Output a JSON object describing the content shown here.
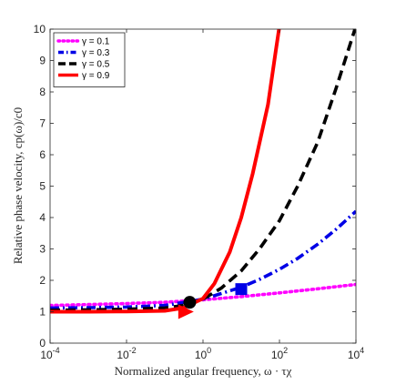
{
  "chart_data": {
    "type": "line",
    "title": "",
    "xlabel": "Normalized angular frequency, ω · τχ",
    "ylabel": "Relative phase velocity, cp(ω)/c0",
    "xscale": "log",
    "xlim": [
      0.0001,
      10000
    ],
    "ylim": [
      0,
      10
    ],
    "x_ticks": [
      0.0001,
      0.01,
      1,
      100,
      10000
    ],
    "x_tick_labels": [
      {
        "base": "10",
        "exp": "-4"
      },
      {
        "base": "10",
        "exp": "-2"
      },
      {
        "base": "10",
        "exp": "0"
      },
      {
        "base": "10",
        "exp": "2"
      },
      {
        "base": "10",
        "exp": "4"
      }
    ],
    "y_ticks": [
      0,
      1,
      2,
      3,
      4,
      5,
      6,
      7,
      8,
      9,
      10
    ],
    "y_tick_labels": [
      "0",
      "1",
      "2",
      "3",
      "4",
      "5",
      "6",
      "7",
      "8",
      "9",
      "10"
    ],
    "grid": false,
    "legend_position": "top-left",
    "series": [
      {
        "name": "γ = 0.1",
        "color": "#ff00ff",
        "dash": "dotted",
        "x": [
          0.0001,
          0.001,
          0.01,
          0.1,
          1,
          10,
          100,
          1000,
          10000
        ],
        "y": [
          1.2,
          1.23,
          1.26,
          1.3,
          1.38,
          1.48,
          1.6,
          1.73,
          1.87
        ],
        "marker": null
      },
      {
        "name": "γ = 0.3",
        "color": "#0000e6",
        "dash": "dash-dot",
        "x": [
          0.0001,
          0.001,
          0.01,
          0.1,
          1,
          3,
          10,
          30,
          100,
          300,
          1000,
          3000,
          10000
        ],
        "y": [
          1.12,
          1.13,
          1.15,
          1.2,
          1.4,
          1.58,
          1.78,
          2.03,
          2.35,
          2.7,
          3.15,
          3.62,
          4.2
        ],
        "marker": {
          "shape": "square",
          "x": 10,
          "y": 1.72
        }
      },
      {
        "name": "γ = 0.5",
        "color": "#000000",
        "dash": "dashed",
        "x": [
          0.0001,
          0.001,
          0.01,
          0.1,
          0.3,
          1,
          3,
          10,
          30,
          100,
          300,
          1000,
          3000,
          10000
        ],
        "y": [
          1.05,
          1.06,
          1.08,
          1.12,
          1.2,
          1.4,
          1.75,
          2.3,
          3.0,
          3.9,
          5.0,
          6.4,
          8.1,
          10.1
        ],
        "marker": {
          "shape": "circle",
          "x": 0.45,
          "y": 1.3
        }
      },
      {
        "name": "γ = 0.9",
        "color": "#ff0000",
        "dash": "solid",
        "x": [
          0.0001,
          0.001,
          0.01,
          0.1,
          0.3,
          1,
          2,
          5,
          10,
          20,
          50,
          80,
          100
        ],
        "y": [
          1.0,
          1.0,
          1.01,
          1.03,
          1.12,
          1.42,
          1.9,
          2.9,
          4.0,
          5.4,
          7.6,
          9.3,
          10.1
        ],
        "marker": {
          "shape": "triangle-right",
          "x": 0.35,
          "y": 1.0
        }
      }
    ]
  }
}
